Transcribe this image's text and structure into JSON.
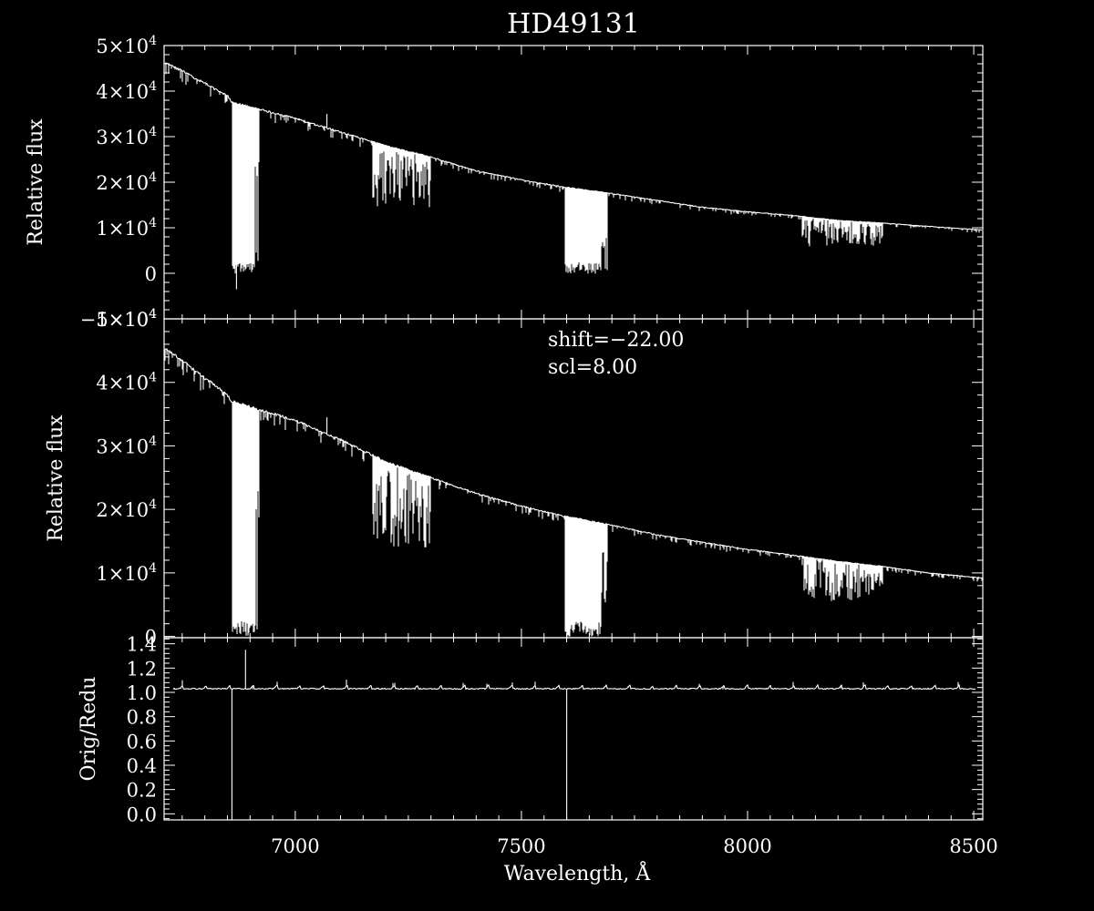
{
  "chart_data": {
    "type": "line",
    "title": "HD49131",
    "x": {
      "label": "Wavelength, Å",
      "range": [
        6710,
        8520
      ],
      "ticks": [
        "7000",
        "7500",
        "8000",
        "8500"
      ]
    },
    "panels": [
      {
        "id": "top",
        "ylabel": "Relative flux",
        "ylim": [
          -10000,
          50000
        ],
        "yticks": [
          {
            "v": 50000,
            "mant": "5",
            "neg": false
          },
          {
            "v": 40000,
            "mant": "4",
            "neg": false
          },
          {
            "v": 30000,
            "mant": "3",
            "neg": false
          },
          {
            "v": 20000,
            "mant": "2",
            "neg": false
          },
          {
            "v": 10000,
            "mant": "1",
            "neg": false
          },
          {
            "v": 0,
            "mant": "0",
            "neg": false
          },
          {
            "v": -10000,
            "mant": "1",
            "neg": true
          }
        ],
        "series": [
          {
            "continuum": [
              [
                6710,
                46500
              ],
              [
                6850,
                39000
              ],
              [
                6860,
                37500
              ],
              [
                7000,
                34000
              ],
              [
                7100,
                31000
              ],
              [
                7200,
                28000
              ],
              [
                7300,
                25500
              ],
              [
                7400,
                22500
              ],
              [
                7500,
                20500
              ],
              [
                7590,
                19000
              ],
              [
                7700,
                17500
              ],
              [
                7800,
                16000
              ],
              [
                7900,
                14500
              ],
              [
                8000,
                13500
              ],
              [
                8100,
                12700
              ],
              [
                8200,
                11600
              ],
              [
                8300,
                11000
              ],
              [
                8400,
                10300
              ],
              [
                8520,
                9500
              ]
            ],
            "bands": [
              {
                "x0": 6860,
                "x1": 6920,
                "min": 0
              },
              {
                "x0": 7170,
                "x1": 7300,
                "min": 14000
              },
              {
                "x0": 7595,
                "x1": 7690,
                "min": 0
              },
              {
                "x0": 8120,
                "x1": 8300,
                "min": 6000
              }
            ],
            "spikes": [
              [
                6870,
                -3500
              ],
              [
                7070,
                35000
              ],
              [
                7600,
                18000
              ]
            ]
          }
        ]
      },
      {
        "id": "middle",
        "ylabel": "Relative flux",
        "ylim": [
          -200,
          50000
        ],
        "yticks": [
          {
            "v": 50000,
            "mant": "5",
            "neg": false
          },
          {
            "v": 40000,
            "mant": "4",
            "neg": false
          },
          {
            "v": 30000,
            "mant": "3",
            "neg": false
          },
          {
            "v": 20000,
            "mant": "2",
            "neg": false
          },
          {
            "v": 10000,
            "mant": "1",
            "neg": false
          },
          {
            "v": 0,
            "mant": "0",
            "neg": false
          }
        ],
        "annotations": [
          "shift=−22.00",
          "scl=8.00"
        ],
        "series": [
          {
            "continuum": [
              [
                6710,
                45500
              ],
              [
                6850,
                38000
              ],
              [
                6860,
                37000
              ],
              [
                7000,
                34000
              ],
              [
                7100,
                31000
              ],
              [
                7200,
                27500
              ],
              [
                7300,
                25000
              ],
              [
                7400,
                22500
              ],
              [
                7500,
                20500
              ],
              [
                7590,
                19000
              ],
              [
                7700,
                17500
              ],
              [
                7800,
                16000
              ],
              [
                7900,
                14800
              ],
              [
                8000,
                13700
              ],
              [
                8100,
                12800
              ],
              [
                8200,
                11800
              ],
              [
                8300,
                11000
              ],
              [
                8400,
                10000
              ],
              [
                8520,
                9200
              ]
            ],
            "bands": [
              {
                "x0": 6860,
                "x1": 6920,
                "min": 0
              },
              {
                "x0": 7170,
                "x1": 7300,
                "min": 14000
              },
              {
                "x0": 7595,
                "x1": 7690,
                "min": 0
              },
              {
                "x0": 8120,
                "x1": 8300,
                "min": 5500
              }
            ],
            "spikes": [
              [
                7070,
                34500
              ],
              [
                7600,
                18500
              ]
            ]
          }
        ]
      },
      {
        "id": "bottom",
        "ylabel": "Orig/Redu",
        "ylim": [
          -0.05,
          1.45
        ],
        "yticks": [
          {
            "v": 1.4,
            "lbl": "1.4"
          },
          {
            "v": 1.2,
            "lbl": "1.2"
          },
          {
            "v": 1.0,
            "lbl": "1.0"
          },
          {
            "v": 0.8,
            "lbl": "0.8"
          },
          {
            "v": 0.6,
            "lbl": "0.6"
          },
          {
            "v": 0.4,
            "lbl": "0.4"
          },
          {
            "v": 0.2,
            "lbl": "0.2"
          },
          {
            "v": 0.0,
            "lbl": "0.0"
          }
        ],
        "series": [
          {
            "level": 1.03,
            "ripple_period_A": 52,
            "spikes": [
              [
                6860,
                -0.05
              ],
              [
                6890,
                1.35
              ],
              [
                7600,
                -0.05
              ]
            ]
          }
        ]
      }
    ]
  }
}
